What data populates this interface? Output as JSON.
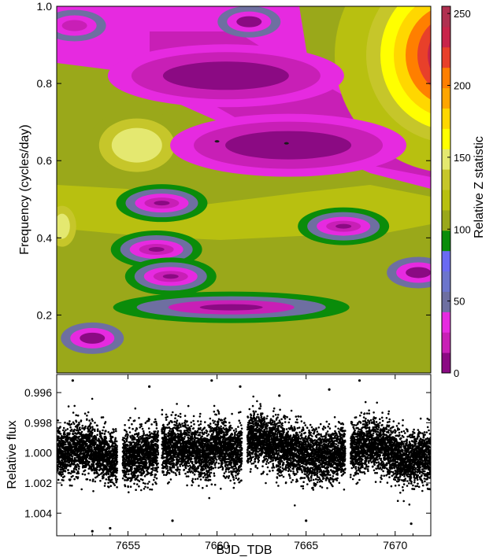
{
  "chart_data": [
    {
      "type": "heatmap",
      "title": "",
      "xlabel": "",
      "ylabel": "Frequency (cycles/day)",
      "xlim": [
        7651,
        7672
      ],
      "ylim": [
        0.05,
        1.0
      ],
      "y_ticks": [
        0.2,
        0.4,
        0.6,
        0.8,
        1.0
      ],
      "y_tick_labels": [
        "0.2",
        "0.4",
        "0.6",
        "0.8",
        "1.0"
      ],
      "colorbar": {
        "label": "Relative Z statistic",
        "range": [
          0,
          255
        ],
        "ticks": [
          0,
          50,
          100,
          150,
          200,
          250
        ],
        "tick_labels": [
          "0",
          "50",
          "100",
          "150",
          "200",
          "250"
        ],
        "levels": [
          "#8b0a83",
          "#c81fb6",
          "#e62ae0",
          "#6e6fa1",
          "#6c75cc",
          "#6a6af2",
          "#0a8c0a",
          "#9aa81a",
          "#b8c010",
          "#c6c62a",
          "#e4e870",
          "#ffff00",
          "#ffd700",
          "#ffa500",
          "#ff7f00",
          "#e8402a",
          "#c8244a",
          "#b03050"
        ]
      },
      "features": [
        {
          "x": 7664.0,
          "y": 0.64,
          "z": 0,
          "shape": "broad-trough"
        },
        {
          "x": 7656.9,
          "y": 0.49,
          "z": 0,
          "shape": "ring-trough"
        },
        {
          "x": 7667.1,
          "y": 0.43,
          "z": 0,
          "shape": "ring-trough"
        },
        {
          "x": 7656.6,
          "y": 0.37,
          "z": 0,
          "shape": "ring-trough"
        },
        {
          "x": 7657.4,
          "y": 0.3,
          "z": 0,
          "shape": "ring-trough"
        },
        {
          "x": 7660.8,
          "y": 0.22,
          "z": 0,
          "shape": "elongated-trough"
        },
        {
          "x": 7671.3,
          "y": 0.31,
          "z": 0,
          "shape": "trough"
        },
        {
          "x": 7653.0,
          "y": 0.14,
          "z": 5,
          "shape": "trough"
        },
        {
          "x": 7660.5,
          "y": 0.82,
          "z": 10,
          "shape": "broad-trough"
        },
        {
          "x": 7652.0,
          "y": 0.95,
          "z": 15,
          "shape": "trough"
        },
        {
          "x": 7661.8,
          "y": 0.96,
          "z": 10,
          "shape": "trough"
        },
        {
          "x": 7655.5,
          "y": 0.64,
          "z": 150,
          "shape": "peak"
        },
        {
          "x": 7651.3,
          "y": 0.43,
          "z": 140,
          "shape": "peak"
        },
        {
          "x": 7671.5,
          "y": 0.9,
          "z": 255,
          "shape": "peak"
        }
      ]
    },
    {
      "type": "scatter",
      "title": "",
      "xlabel": "BJD_TDB",
      "ylabel": "Relative flux",
      "xlim": [
        7651,
        7672
      ],
      "ylim": [
        1.0055,
        0.9948
      ],
      "y_inverted": true,
      "x_ticks": [
        7655,
        7660,
        7665,
        7670
      ],
      "x_tick_labels": [
        "7655",
        "7660",
        "7665",
        "7670"
      ],
      "y_ticks": [
        0.996,
        0.998,
        1.0,
        1.002,
        1.004
      ],
      "y_tick_labels": [
        "0.996",
        "0.998",
        "1.000",
        "1.002",
        "1.004"
      ],
      "gaps": [
        [
          7654.4,
          7654.7
        ],
        [
          7656.7,
          7656.9
        ],
        [
          7661.4,
          7661.7
        ],
        [
          7667.2,
          7667.5
        ]
      ],
      "trend": [
        [
          7651.0,
          1.0001
        ],
        [
          7652.5,
          0.9996
        ],
        [
          7654.0,
          1.0003
        ],
        [
          7655.0,
          1.0004
        ],
        [
          7657.5,
          0.9995
        ],
        [
          7659.5,
          1.0001
        ],
        [
          7660.0,
          0.9991
        ],
        [
          7661.0,
          1.0002
        ],
        [
          7662.0,
          0.9989
        ],
        [
          7663.5,
          0.9995
        ],
        [
          7665.5,
          1.0003
        ],
        [
          7666.5,
          1.0002
        ],
        [
          7667.0,
          0.9999
        ],
        [
          7668.5,
          0.9994
        ],
        [
          7669.5,
          0.9997
        ],
        [
          7670.5,
          1.0004
        ],
        [
          7672.0,
          1.0003
        ]
      ],
      "scatter_sigma": 0.00085,
      "n_points": 11000,
      "outliers": [
        [
          7651.9,
          0.9952
        ],
        [
          7656.2,
          0.9956
        ],
        [
          7659.7,
          0.9952
        ],
        [
          7661.3,
          0.9956
        ],
        [
          7666.3,
          0.9958
        ],
        [
          7668.0,
          0.9952
        ],
        [
          7654.0,
          1.005
        ],
        [
          7653.0,
          1.0052
        ],
        [
          7665.0,
          1.0045
        ],
        [
          7670.9,
          1.0047
        ],
        [
          7663.5,
          0.9962
        ],
        [
          7657.5,
          1.0045
        ]
      ]
    }
  ]
}
